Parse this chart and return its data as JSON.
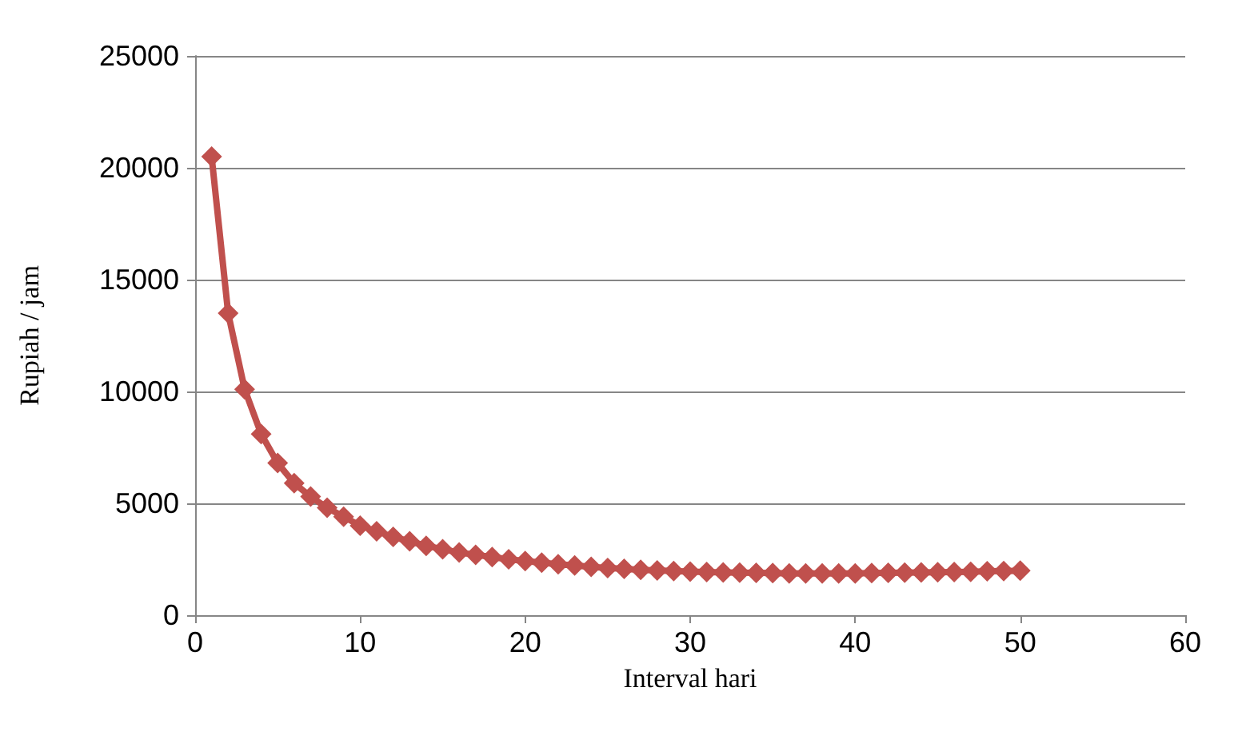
{
  "chart_data": {
    "type": "line",
    "xlabel": "Interval hari",
    "ylabel": "Rupiah / jam",
    "x": [
      1,
      2,
      3,
      4,
      5,
      6,
      7,
      8,
      9,
      10,
      11,
      12,
      13,
      14,
      15,
      16,
      17,
      18,
      19,
      20,
      21,
      22,
      23,
      24,
      25,
      26,
      27,
      28,
      29,
      30,
      31,
      32,
      33,
      34,
      35,
      36,
      37,
      38,
      39,
      40,
      41,
      42,
      43,
      44,
      45,
      46,
      47,
      48,
      49,
      50
    ],
    "series": [
      {
        "color": "#c0504d",
        "values": [
          20500,
          13500,
          10100,
          8100,
          6800,
          5900,
          5300,
          4800,
          4400,
          4000,
          3750,
          3500,
          3300,
          3100,
          2950,
          2800,
          2700,
          2600,
          2500,
          2420,
          2350,
          2280,
          2220,
          2160,
          2110,
          2070,
          2030,
          2000,
          1970,
          1950,
          1930,
          1910,
          1900,
          1890,
          1880,
          1870,
          1870,
          1870,
          1870,
          1870,
          1880,
          1890,
          1900,
          1910,
          1920,
          1930,
          1940,
          1960,
          1970,
          1990
        ]
      }
    ],
    "xlim": [
      0,
      60
    ],
    "xticks": [
      0,
      10,
      20,
      30,
      40,
      50,
      60
    ],
    "ylim": [
      0,
      25000
    ],
    "yticks": [
      0,
      5000,
      10000,
      15000,
      20000,
      25000
    ],
    "grid": "y",
    "marker": "diamond",
    "line_style": "solid"
  }
}
